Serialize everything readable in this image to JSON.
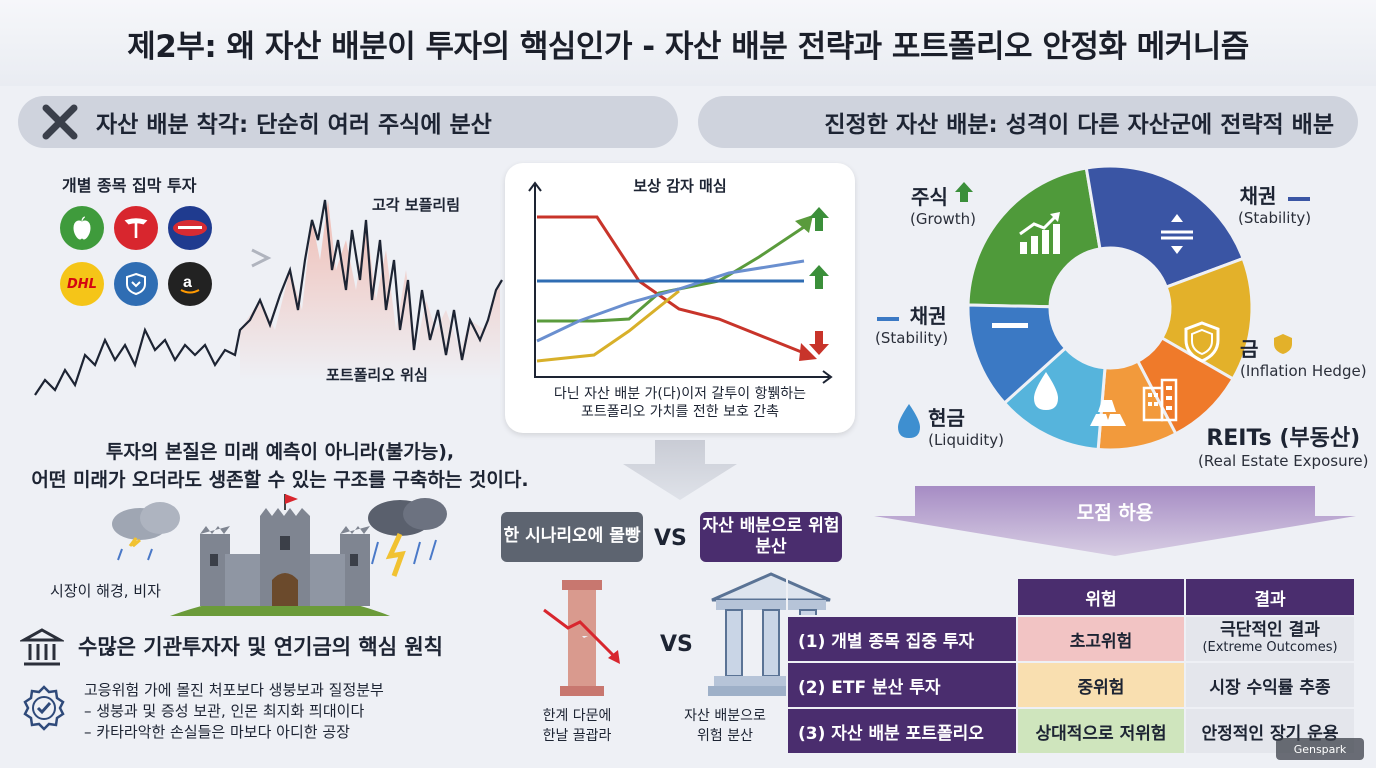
{
  "title": "제2부: 왜 자산 배분이 투자의 핵심인가 - 자산 배분 전략과 포트폴리오 안정화 메커니즘",
  "left_header": "자산 배분 착각: 단순히 여러 주식에 분산",
  "right_header": "진정한 자산 배분: 성격이 다른 자산군에 전략적 배분",
  "concentrated": {
    "label": "개별 종목 집막 투자",
    "logos": [
      {
        "name": "apple-logo",
        "color": "#3f9b3c"
      },
      {
        "name": "tesla-logo",
        "color": "#d8262e"
      },
      {
        "name": "samsung-logo",
        "color": "#1f3b8f"
      },
      {
        "name": "dhl-logo",
        "color": "#f5c518"
      },
      {
        "name": "shield-logo",
        "color": "#2f6db3"
      },
      {
        "name": "amazon-logo",
        "color": "#222222"
      }
    ],
    "volatility_label": "고각 보플리림",
    "risk_label": "포트폴리오 위심"
  },
  "correlation_card": {
    "title": "보상 감자 매심",
    "caption_line1": "다닌 자산 배분 가(다)이저 갈투이 항뷁하는",
    "caption_line2": "포트폴리오 가치를 전한 보호 간촉"
  },
  "essence": {
    "line1": "투자의 본질은 미래 예측이 아니라(불가능),",
    "line2": "어떤 미래가 오더라도 생존할 수 있는 구조를 구축하는 것이다."
  },
  "castle_caption": "시장이 해경, 비자",
  "principle": {
    "title": "수많은 기관투자자 및 연기금의 핵심 원칙",
    "line1": "고응위험 가에 몰진 처포보다 생붕보과 질정분부",
    "line2": "– 생붕과 및 증성 보관, 인몬 최지화 픠대이다",
    "line3": "– 카타라악한 손실들은 마보다 아디한 공장"
  },
  "compare": {
    "left_tag": "한 시나리오에 몰빵",
    "vs_top": "VS",
    "right_tag": "자산 배분으로 위험 분산",
    "vs_mid": "VS",
    "left_caption_1": "한계 다문에",
    "left_caption_2": "한날 끌괍라",
    "right_caption_1": "자산 배분으로",
    "right_caption_2": "위험 분산"
  },
  "donut": {
    "segments": [
      {
        "name": "주식",
        "sub": "(Growth)",
        "color": "#4f9a3a",
        "share": 0.22
      },
      {
        "name": "채권",
        "sub": "(Stability)",
        "color": "#3a55a4",
        "share": 0.22
      },
      {
        "name": "금",
        "sub": "(Inflation Hedge)",
        "color": "#e3b12a",
        "share": 0.14
      },
      {
        "name": "REITs (부동산)",
        "sub": "(Real Estate Exposure)",
        "color": "#ef7a2a",
        "share": 0.09
      },
      {
        "name": "",
        "sub": "",
        "color": "#f29a3c",
        "share": 0.09
      },
      {
        "name": "현금",
        "sub": "(Liquidity)",
        "color": "#56b4dc",
        "share": 0.12
      },
      {
        "name": "채권",
        "sub": "(Stability)",
        "color": "#3b79c4",
        "share": 0.12
      }
    ]
  },
  "funnel_label": "모점 하용",
  "table": {
    "headers": [
      "위험",
      "결과"
    ],
    "rows": [
      {
        "label": "(1) 개별 종목 집중 투자",
        "risk": "초고위험",
        "result": "극단적인 결과",
        "result_sub": "(Extreme Outcomes)",
        "risk_color": "#f2c4c4"
      },
      {
        "label": "(2) ETF 분산 투자",
        "risk": "중위험",
        "result": "시장 수익률 추종",
        "result_sub": "",
        "risk_color": "#f9dfb0"
      },
      {
        "label": "(3) 자산 배분 포트폴리오",
        "risk": "상대적으로 저위험",
        "result": "안정적인 장기 운용",
        "result_sub": "",
        "risk_color": "#cfe5bd"
      }
    ]
  },
  "watermark": "Genspark"
}
